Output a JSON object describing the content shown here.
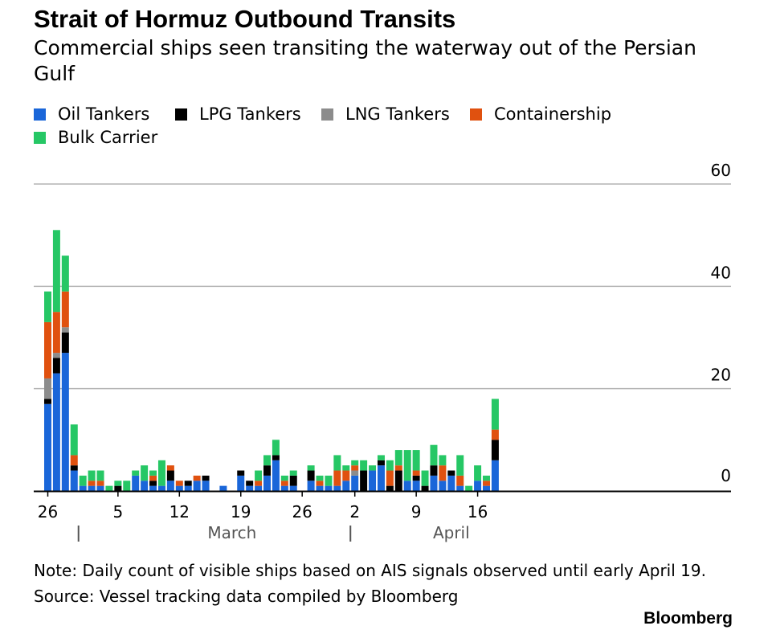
{
  "title": "Strait of Hormuz Outbound Transits",
  "subtitle": "Commercial ships seen transiting the waterway out of the Persian Gulf",
  "note": "Note: Daily count of visible ships based on AIS signals observed until early April 19.",
  "source": "Source: Vessel tracking data compiled by Bloomberg",
  "brand": "Bloomberg",
  "colors": {
    "oil": "#1a66d9",
    "lpg": "#000000",
    "lng": "#8c8c8c",
    "container": "#e0510f",
    "bulk": "#26c765",
    "grid": "#b4b4b4",
    "axis": "#000000"
  },
  "chart_data": {
    "type": "bar",
    "stacked": true,
    "title": "Strait of Hormuz Outbound Transits",
    "subtitle": "Commercial ships seen transiting the waterway out of the Persian Gulf",
    "ylim": [
      0,
      60
    ],
    "yticks": [
      0,
      20,
      40,
      60
    ],
    "grid": true,
    "y_axis_side": "right",
    "legend_placement": "top-left",
    "xtick_labels": [
      "26",
      "5",
      "12",
      "19",
      "26",
      "2",
      "9",
      "16"
    ],
    "xtick_days": [
      0,
      8,
      15,
      22,
      29,
      35,
      42,
      49
    ],
    "month_labels": [
      {
        "label": "March",
        "day": 21
      },
      {
        "label": "April",
        "day": 46
      }
    ],
    "month_separators": [
      3.5,
      34.5
    ],
    "days": [
      0,
      1,
      2,
      3,
      4,
      5,
      6,
      7,
      8,
      9,
      10,
      11,
      12,
      13,
      14,
      15,
      16,
      17,
      18,
      19,
      20,
      21,
      22,
      23,
      24,
      25,
      26,
      27,
      28,
      29,
      30,
      31,
      32,
      33,
      34,
      35,
      36,
      37,
      38,
      39,
      40,
      41,
      42,
      43,
      44,
      45,
      46,
      47,
      48,
      49,
      50,
      51
    ],
    "series": [
      {
        "name": "Oil Tankers",
        "color_key": "oil",
        "values": [
          17,
          23,
          27,
          4,
          1,
          1,
          1,
          0,
          0,
          0,
          3,
          2,
          1,
          1,
          2,
          1,
          1,
          2,
          2,
          0,
          1,
          0,
          3,
          1,
          1,
          3,
          6,
          1,
          1,
          0,
          2,
          1,
          1,
          1,
          2,
          3,
          0,
          4,
          5,
          0,
          0,
          2,
          2,
          0,
          3,
          2,
          3,
          1,
          0,
          2,
          1,
          6
        ]
      },
      {
        "name": "LPG Tankers",
        "color_key": "lpg",
        "values": [
          1,
          3,
          4,
          1,
          0,
          0,
          0,
          0,
          1,
          0,
          0,
          0,
          1,
          0,
          2,
          0,
          1,
          0,
          1,
          0,
          0,
          0,
          1,
          1,
          0,
          2,
          1,
          0,
          2,
          0,
          2,
          0,
          0,
          0,
          0,
          0,
          4,
          0,
          1,
          1,
          4,
          0,
          1,
          1,
          2,
          0,
          1,
          0,
          0,
          0,
          0,
          4
        ]
      },
      {
        "name": "LNG Tankers",
        "color_key": "lng",
        "values": [
          4,
          1,
          1,
          0,
          0,
          0,
          0,
          0,
          0,
          0,
          0,
          0,
          0,
          0,
          0,
          0,
          0,
          0,
          0,
          0,
          0,
          0,
          0,
          0,
          0,
          0,
          0,
          0,
          0,
          0,
          0,
          0,
          0,
          0,
          0,
          1,
          0,
          0,
          0,
          0,
          0,
          0,
          0,
          0,
          0,
          0,
          0,
          0,
          0,
          0,
          0,
          0
        ]
      },
      {
        "name": "Containership",
        "color_key": "container",
        "values": [
          11,
          8,
          7,
          2,
          0,
          1,
          1,
          0,
          0,
          0,
          0,
          0,
          1,
          0,
          1,
          1,
          0,
          1,
          0,
          0,
          0,
          0,
          0,
          0,
          1,
          0,
          0,
          1,
          0,
          0,
          0,
          1,
          0,
          3,
          2,
          1,
          0,
          0,
          0,
          3,
          1,
          0,
          1,
          0,
          0,
          3,
          0,
          2,
          0,
          0,
          1,
          2
        ]
      },
      {
        "name": "Bulk Carrier",
        "color_key": "bulk",
        "values": [
          6,
          16,
          7,
          6,
          2,
          2,
          2,
          1,
          1,
          2,
          1,
          3,
          1,
          5,
          0,
          0,
          0,
          0,
          0,
          0,
          0,
          0,
          0,
          0,
          2,
          2,
          3,
          1,
          1,
          0,
          1,
          1,
          2,
          3,
          1,
          1,
          2,
          1,
          1,
          2,
          3,
          6,
          4,
          3,
          4,
          2,
          0,
          4,
          1,
          3,
          1,
          6
        ]
      }
    ]
  }
}
